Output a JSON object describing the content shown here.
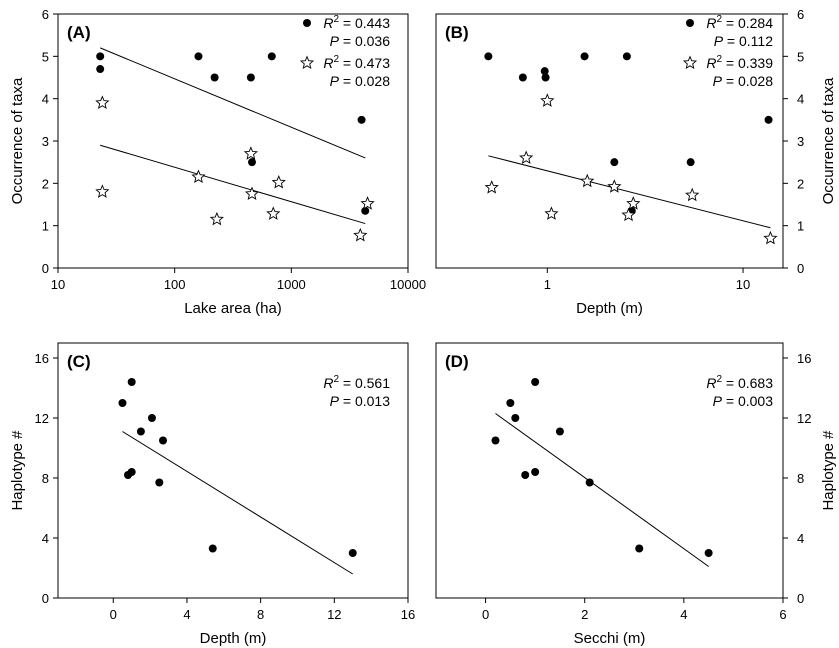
{
  "chart_data": [
    {
      "panel": "(A)",
      "type": "scatter",
      "xlabel": "Lake area (ha)",
      "ylabel": "Occurrence of taxa",
      "xscale": "log",
      "xlim": [
        10,
        10000
      ],
      "ylim": [
        0,
        6
      ],
      "xticks": [
        "10",
        "100",
        "1000",
        "10000"
      ],
      "yticks": [
        "0",
        "1",
        "2",
        "3",
        "4",
        "5",
        "6"
      ],
      "yaxis_side": "left",
      "series": [
        {
          "marker": "circle",
          "x": [
            23,
            23,
            160,
            220,
            450,
            460,
            680,
            4000,
            4300
          ],
          "y": [
            5.0,
            4.7,
            5.0,
            4.5,
            4.5,
            2.5,
            5.0,
            3.5,
            1.35
          ],
          "fit": {
            "x": [
              23,
              4300
            ],
            "y": [
              5.2,
              2.6
            ]
          },
          "stats": {
            "r2_label": "R",
            "r2_sup": "2",
            "r2_value": " = 0.443",
            "p_label": "P",
            "p_value": " = 0.036"
          }
        },
        {
          "marker": "star",
          "x": [
            24,
            24,
            160,
            230,
            450,
            460,
            700,
            780,
            3900,
            4500
          ],
          "y": [
            3.9,
            1.8,
            2.15,
            1.15,
            2.7,
            1.75,
            1.28,
            2.02,
            0.77,
            1.52
          ],
          "fit": {
            "x": [
              23,
              4300
            ],
            "y": [
              2.9,
              1.05
            ]
          },
          "stats": {
            "r2_label": "R",
            "r2_sup": "2",
            "r2_value": " = 0.473",
            "p_label": "P",
            "p_value": " = 0.028"
          }
        }
      ]
    },
    {
      "panel": "(B)",
      "type": "scatter",
      "xlabel": "Depth (m)",
      "ylabel": "Occurrence of taxa",
      "xscale": "log",
      "xlim": [
        0.27,
        16
      ],
      "ylim": [
        0,
        6
      ],
      "xticks": [
        "1",
        "10"
      ],
      "yticks": [
        "0",
        "1",
        "2",
        "3",
        "4",
        "5",
        "6"
      ],
      "yaxis_side": "right",
      "series": [
        {
          "marker": "circle",
          "x": [
            0.5,
            0.75,
            0.97,
            0.98,
            1.55,
            2.2,
            2.55,
            2.7,
            5.4,
            13.5
          ],
          "y": [
            5.0,
            4.5,
            4.65,
            4.5,
            5.0,
            2.5,
            5.0,
            1.35,
            2.5,
            3.5
          ],
          "stats": {
            "r2_label": "R",
            "r2_sup": "2",
            "r2_value": " = 0.284",
            "p_label": "P",
            "p_value": " = 0.112"
          }
        },
        {
          "marker": "star",
          "x": [
            0.52,
            0.78,
            1.0,
            1.05,
            1.6,
            2.2,
            2.6,
            2.75,
            5.5,
            13.8
          ],
          "y": [
            1.9,
            2.6,
            3.95,
            1.28,
            2.05,
            1.92,
            1.25,
            1.52,
            1.72,
            0.7
          ],
          "fit": {
            "x": [
              0.5,
              13.8
            ],
            "y": [
              2.65,
              0.95
            ]
          },
          "stats": {
            "r2_label": "R",
            "r2_sup": "2",
            "r2_value": " = 0.339",
            "p_label": "P",
            "p_value": " = 0.028"
          }
        }
      ]
    },
    {
      "panel": "(C)",
      "type": "scatter",
      "xlabel": "Depth (m)",
      "ylabel": "Haplotype #",
      "xscale": "linear",
      "xlim": [
        -3,
        16
      ],
      "ylim": [
        0,
        17
      ],
      "xticks": [
        "0",
        "4",
        "8",
        "12",
        "16"
      ],
      "yticks": [
        "0",
        "4",
        "8",
        "12",
        "16"
      ],
      "yaxis_side": "left",
      "series": [
        {
          "marker": "circle",
          "x": [
            0.5,
            0.8,
            1.0,
            1.0,
            1.5,
            2.1,
            2.5,
            2.7,
            5.4,
            13.0
          ],
          "y": [
            13.0,
            8.2,
            14.4,
            8.4,
            11.1,
            12.0,
            7.7,
            10.5,
            3.3,
            3.0
          ],
          "fit": {
            "x": [
              0.5,
              13.0
            ],
            "y": [
              11.1,
              1.6
            ]
          },
          "stats": {
            "r2_label": "R",
            "r2_sup": "2",
            "r2_value": " = 0.561",
            "p_label": "P",
            "p_value": " = 0.013"
          }
        }
      ]
    },
    {
      "panel": "(D)",
      "type": "scatter",
      "xlabel": "Secchi (m)",
      "ylabel": "Haplotype #",
      "xscale": "linear",
      "xlim": [
        -1,
        6
      ],
      "ylim": [
        0,
        17
      ],
      "xticks": [
        "0",
        "2",
        "4",
        "6"
      ],
      "yticks": [
        "0",
        "4",
        "8",
        "12",
        "16"
      ],
      "yaxis_side": "right",
      "series": [
        {
          "marker": "circle",
          "x": [
            0.2,
            0.5,
            0.6,
            0.8,
            1.0,
            1.0,
            1.5,
            2.1,
            3.1,
            4.5
          ],
          "y": [
            10.5,
            13.0,
            12.0,
            8.2,
            14.4,
            8.4,
            11.1,
            7.7,
            3.3,
            3.0
          ],
          "fit": {
            "x": [
              0.2,
              4.5
            ],
            "y": [
              12.3,
              2.1
            ]
          },
          "stats": {
            "r2_label": "R",
            "r2_sup": "2",
            "r2_value": " = 0.683",
            "p_label": "P",
            "p_value": " = 0.003"
          }
        }
      ]
    }
  ]
}
